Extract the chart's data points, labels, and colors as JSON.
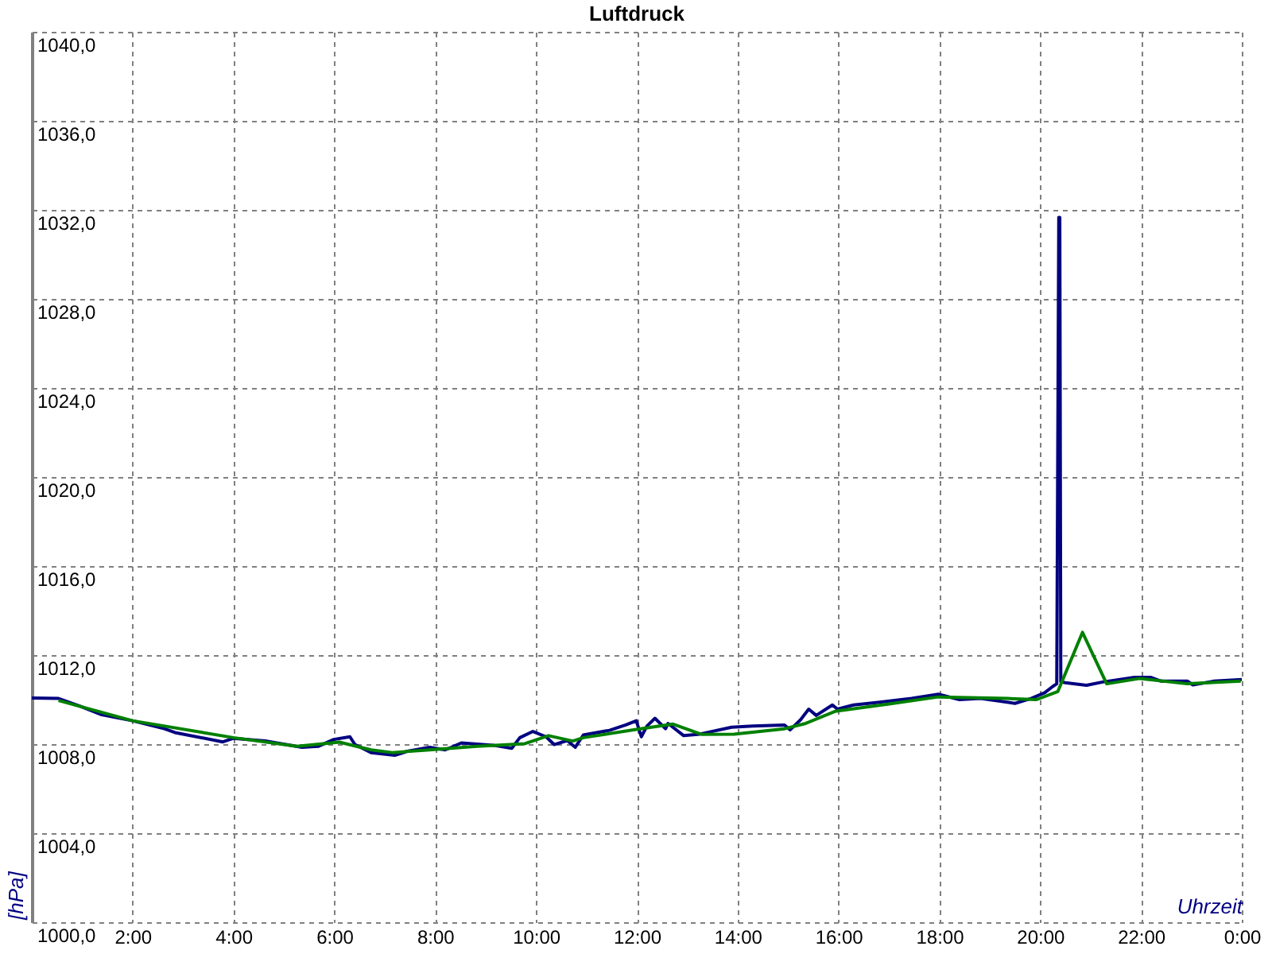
{
  "chart_data": {
    "type": "line",
    "title": "Luftdruck",
    "xlabel": "Uhrzeit",
    "ylabel": "[hPa]",
    "xlim": [
      0,
      24
    ],
    "ylim": [
      1000,
      1040
    ],
    "xticks": [
      {
        "value": 2,
        "label": "2:00"
      },
      {
        "value": 4,
        "label": "4:00"
      },
      {
        "value": 6,
        "label": "6:00"
      },
      {
        "value": 8,
        "label": "8:00"
      },
      {
        "value": 10,
        "label": "10:00"
      },
      {
        "value": 12,
        "label": "12:00"
      },
      {
        "value": 14,
        "label": "14:00"
      },
      {
        "value": 16,
        "label": "16:00"
      },
      {
        "value": 18,
        "label": "18:00"
      },
      {
        "value": 20,
        "label": "20:00"
      },
      {
        "value": 22,
        "label": "22:00"
      },
      {
        "value": 24,
        "label": "0:00"
      }
    ],
    "yticks": [
      {
        "value": 1000,
        "label": "1000,0"
      },
      {
        "value": 1004,
        "label": "1004,0"
      },
      {
        "value": 1008,
        "label": "1008,0"
      },
      {
        "value": 1012,
        "label": "1012,0"
      },
      {
        "value": 1016,
        "label": "1016,0"
      },
      {
        "value": 1020,
        "label": "1020,0"
      },
      {
        "value": 1024,
        "label": "1024,0"
      },
      {
        "value": 1028,
        "label": "1028,0"
      },
      {
        "value": 1032,
        "label": "1032,0"
      },
      {
        "value": 1036,
        "label": "1036,0"
      },
      {
        "value": 1040,
        "label": "1040,0"
      }
    ],
    "grid": true,
    "series": [
      {
        "color": "#000080",
        "x": [
          0.0,
          0.53,
          0.95,
          1.37,
          2.0,
          2.63,
          2.84,
          3.79,
          4.0,
          4.63,
          5.36,
          5.68,
          5.99,
          6.31,
          6.41,
          6.73,
          7.2,
          7.47,
          7.89,
          8.2,
          8.52,
          9.15,
          9.52,
          9.68,
          9.94,
          10.2,
          10.36,
          10.62,
          10.78,
          10.94,
          11.46,
          11.78,
          11.99,
          12.09,
          12.2,
          12.36,
          12.57,
          12.62,
          12.93,
          13.25,
          13.88,
          14.3,
          14.93,
          15.04,
          15.25,
          15.41,
          15.56,
          15.88,
          15.98,
          16.3,
          16.82,
          17.45,
          17.98,
          18.4,
          18.82,
          19.5,
          19.82,
          20.09,
          20.25,
          20.33,
          20.35,
          20.37,
          20.39,
          20.41,
          20.5,
          20.92,
          21.24,
          21.87,
          22.19,
          22.4,
          22.92,
          23.03,
          23.45,
          24.0
        ],
        "values": [
          1010.07,
          1010.05,
          1009.71,
          1009.33,
          1009.05,
          1008.69,
          1008.52,
          1008.1,
          1008.26,
          1008.14,
          1007.86,
          1007.9,
          1008.21,
          1008.33,
          1007.98,
          1007.62,
          1007.5,
          1007.69,
          1007.86,
          1007.74,
          1008.05,
          1007.95,
          1007.81,
          1008.29,
          1008.57,
          1008.33,
          1007.98,
          1008.16,
          1007.86,
          1008.41,
          1008.62,
          1008.86,
          1009.05,
          1008.33,
          1008.81,
          1009.16,
          1008.69,
          1008.93,
          1008.38,
          1008.45,
          1008.76,
          1008.81,
          1008.86,
          1008.64,
          1009.1,
          1009.57,
          1009.29,
          1009.76,
          1009.57,
          1009.76,
          1009.88,
          1010.05,
          1010.24,
          1010.0,
          1010.05,
          1009.83,
          1010.05,
          1010.31,
          1010.59,
          1010.71,
          1021.2,
          1031.66,
          1031.66,
          1010.8,
          1010.76,
          1010.64,
          1010.79,
          1011.0,
          1011.0,
          1010.83,
          1010.83,
          1010.66,
          1010.83,
          1010.9
        ]
      },
      {
        "color": "#008000",
        "x": [
          0.53,
          2.0,
          4.0,
          5.26,
          6.1,
          6.73,
          7.15,
          7.89,
          8.83,
          9.78,
          10.25,
          10.73,
          10.94,
          11.99,
          12.72,
          13.28,
          13.93,
          14.93,
          15.35,
          15.93,
          17.03,
          17.98,
          19.35,
          19.93,
          20.35,
          20.84,
          21.32,
          21.98,
          22.92,
          23.98
        ],
        "values": [
          1009.96,
          1009.05,
          1008.29,
          1007.9,
          1008.09,
          1007.74,
          1007.62,
          1007.74,
          1007.9,
          1008.02,
          1008.38,
          1008.14,
          1008.29,
          1008.66,
          1008.9,
          1008.44,
          1008.45,
          1008.69,
          1008.93,
          1009.47,
          1009.81,
          1010.12,
          1010.05,
          1010.0,
          1010.36,
          1013.02,
          1010.71,
          1010.95,
          1010.71,
          1010.83
        ]
      }
    ]
  }
}
